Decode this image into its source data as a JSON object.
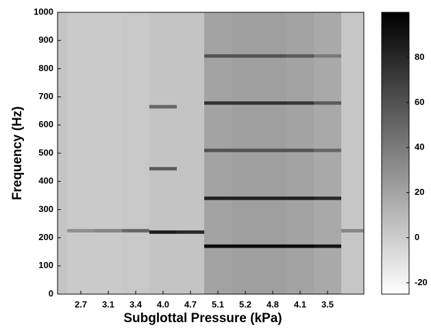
{
  "chart_data": {
    "type": "heatmap",
    "xlabel": "Subglottal Pressure (kPa)",
    "ylabel": "Frequency (Hz)",
    "categories": [
      null,
      "2.7",
      "3.1",
      "3.4",
      "4.0",
      "4.7",
      "5.1",
      "5.2",
      "4.8",
      "4.1",
      "3.5",
      null
    ],
    "columns": [
      {
        "background": 4,
        "bands": []
      },
      {
        "background": 1,
        "bands": [
          {
            "frequency": 225,
            "intensity": 30
          }
        ]
      },
      {
        "background": 1,
        "bands": [
          {
            "frequency": 225,
            "intensity": 35
          }
        ]
      },
      {
        "background": 2,
        "bands": [
          {
            "frequency": 225,
            "intensity": 50
          }
        ]
      },
      {
        "background": 4,
        "bands": [
          {
            "frequency": 220,
            "intensity": 85
          },
          {
            "frequency": 445,
            "intensity": 55
          },
          {
            "frequency": 665,
            "intensity": 50
          }
        ]
      },
      {
        "background": 4,
        "bands": [
          {
            "frequency": 220,
            "intensity": 80
          }
        ]
      },
      {
        "background": 20,
        "bands": [
          {
            "frequency": 170,
            "intensity": 95
          },
          {
            "frequency": 340,
            "intensity": 85
          },
          {
            "frequency": 510,
            "intensity": 60
          },
          {
            "frequency": 678,
            "intensity": 75
          },
          {
            "frequency": 845,
            "intensity": 60
          }
        ]
      },
      {
        "background": 22,
        "bands": [
          {
            "frequency": 170,
            "intensity": 95
          },
          {
            "frequency": 340,
            "intensity": 85
          },
          {
            "frequency": 510,
            "intensity": 60
          },
          {
            "frequency": 678,
            "intensity": 75
          },
          {
            "frequency": 845,
            "intensity": 60
          }
        ]
      },
      {
        "background": 22,
        "bands": [
          {
            "frequency": 170,
            "intensity": 95
          },
          {
            "frequency": 340,
            "intensity": 85
          },
          {
            "frequency": 510,
            "intensity": 60
          },
          {
            "frequency": 678,
            "intensity": 75
          },
          {
            "frequency": 845,
            "intensity": 60
          }
        ]
      },
      {
        "background": 20,
        "bands": [
          {
            "frequency": 170,
            "intensity": 95
          },
          {
            "frequency": 340,
            "intensity": 85
          },
          {
            "frequency": 510,
            "intensity": 60
          },
          {
            "frequency": 678,
            "intensity": 72
          },
          {
            "frequency": 845,
            "intensity": 55
          }
        ]
      },
      {
        "background": 17,
        "bands": [
          {
            "frequency": 170,
            "intensity": 90
          },
          {
            "frequency": 340,
            "intensity": 80
          },
          {
            "frequency": 510,
            "intensity": 50
          },
          {
            "frequency": 678,
            "intensity": 55
          },
          {
            "frequency": 845,
            "intensity": 40
          }
        ]
      },
      {
        "background": 3,
        "bands": [
          {
            "frequency": 225,
            "intensity": 35
          }
        ]
      }
    ],
    "ylim": [
      0,
      1000
    ],
    "yticks": [
      0,
      100,
      200,
      300,
      400,
      500,
      600,
      700,
      800,
      900,
      1000
    ],
    "clim": [
      -25,
      100
    ],
    "cticks": [
      -20,
      0,
      20,
      40,
      60,
      80
    ]
  }
}
